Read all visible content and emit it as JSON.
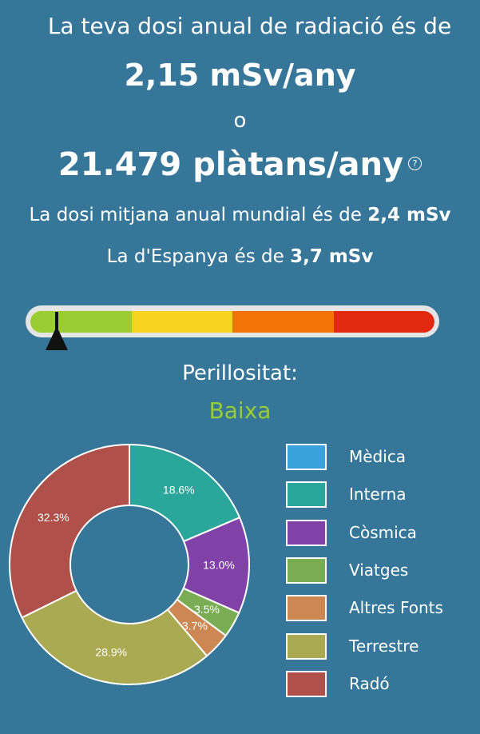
{
  "header": {
    "line1": "La teva dosi anual de radiació és de",
    "dose": "2,15 mSv/any",
    "or": "o",
    "bananas": "21.479 plàtans/any",
    "help_icon": "question-circle-icon",
    "help_glyph": "?",
    "world_text": "La dosi mitjana anual mundial és de ",
    "world_value": "2,4 mSv",
    "spain_text": "La d'Espanya és de ",
    "spain_value": "3,7 mSv"
  },
  "gauge": {
    "colors": [
      "#9acd32",
      "#f7d21e",
      "#f47306",
      "#e2290f"
    ],
    "pointer_fraction": 0.065,
    "danger_label": "Perillositat:",
    "danger_level": "Baixa",
    "level_color": "#9acd32"
  },
  "chart_data": {
    "type": "pie",
    "donut": true,
    "legend_position": "right",
    "categories": [
      "Mèdica",
      "Interna",
      "Còsmica",
      "Viatges",
      "Altres Fonts",
      "Terrestre",
      "Radó"
    ],
    "values": [
      0,
      18.6,
      13.0,
      3.5,
      3.7,
      28.9,
      32.3
    ],
    "labels": [
      "",
      "18.6%",
      "13.0%",
      "3.5%",
      "3.7%",
      "28.9%",
      "32.3%"
    ],
    "colors": [
      "#3aa2db",
      "#2aa69a",
      "#8042a7",
      "#79ac53",
      "#cc8752",
      "#a9aa51",
      "#b0504a"
    ]
  }
}
